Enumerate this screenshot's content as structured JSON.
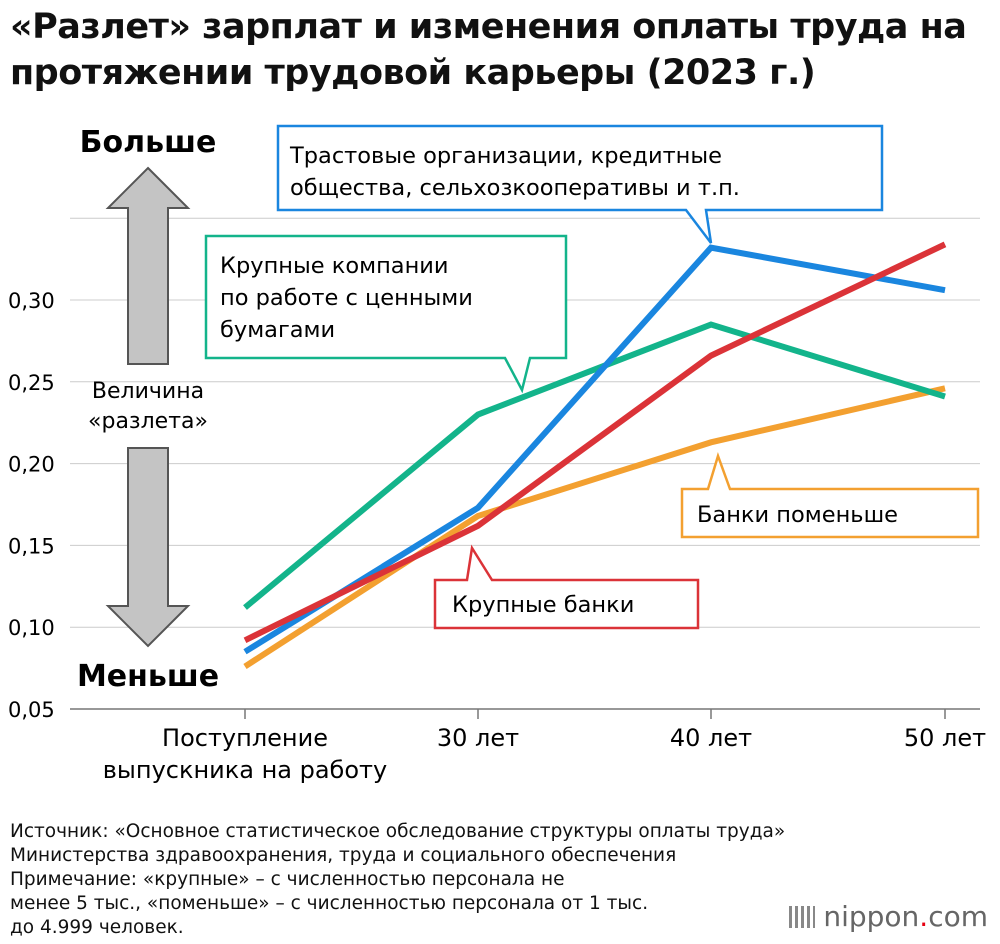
{
  "title": {
    "line1": "«Разлет» зарплат и изменения оплаты труда на",
    "line2": "протяжении трудовой карьеры (2023 г.)"
  },
  "side": {
    "more": "Больше",
    "less": "Меньше",
    "measure_line1": "Величина",
    "measure_line2": "«разлета»"
  },
  "chart_data": {
    "type": "line",
    "categories": [
      "Поступление выпускника на работу",
      "30 лет",
      "40 лет",
      "50 лет"
    ],
    "category_lines": [
      [
        "Поступление",
        "выпускника на работу"
      ],
      [
        "30 лет"
      ],
      [
        "40 лет"
      ],
      [
        "50 лет"
      ]
    ],
    "ylim": [
      0.05,
      0.35
    ],
    "yticks": [
      0.05,
      0.1,
      0.15,
      0.2,
      0.25,
      0.3
    ],
    "ytick_labels": [
      "0,05",
      "0,10",
      "0,15",
      "0,20",
      "0,25",
      "0,30"
    ],
    "grid": true,
    "series": [
      {
        "name": "Трастовые организации, кредитные общества, сельхозкооперативы и т.п.",
        "label_lines": [
          "Трастовые организации, кредитные",
          "общества, сельхозкооперативы и т.п."
        ],
        "color": "#1a86df",
        "values": [
          0.085,
          0.173,
          0.332,
          0.306
        ]
      },
      {
        "name": "Крупные компании по работе с ценными бумагами",
        "label_lines": [
          "Крупные компании",
          "по работе с ценными",
          "бумагами"
        ],
        "color": "#13b48b",
        "values": [
          0.112,
          0.23,
          0.285,
          0.241
        ]
      },
      {
        "name": "Крупные банки",
        "label_lines": [
          "Крупные банки"
        ],
        "color": "#db3338",
        "values": [
          0.092,
          0.162,
          0.266,
          0.334
        ]
      },
      {
        "name": "Банки поменьше",
        "label_lines": [
          "Банки поменьше"
        ],
        "color": "#f3a030",
        "values": [
          0.076,
          0.168,
          0.213,
          0.246
        ]
      }
    ]
  },
  "footer": {
    "line1": "Источник: «Основное статистическое обследование структуры оплаты труда»",
    "line2": "Министерства здравоохранения, труда и социального обеспечения",
    "line3": "Примечание: «крупные» – с численностью персонала не",
    "line4": "менее 5 тыс., «поменьше» – с численностью персонала от 1 тыс.",
    "line5": "до 4.999 человек."
  },
  "brand": {
    "name": "nippon",
    "dot": ".",
    "suffix": "com"
  }
}
